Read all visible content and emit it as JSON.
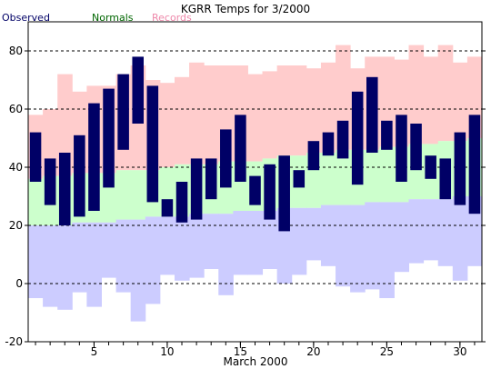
{
  "chart_data": {
    "type": "bar",
    "title": "KGRR Temps for 3/2000",
    "xlabel": "March 2000",
    "ylabel": "",
    "legend": [
      {
        "label": "Observed",
        "color": "#000066"
      },
      {
        "label": "Normals",
        "color": "#006600"
      },
      {
        "label": "Records",
        "color": "#ee88aa"
      }
    ],
    "xlim": [
      0.5,
      31.5
    ],
    "ylim": [
      -20,
      90
    ],
    "x_ticks": [
      5,
      10,
      15,
      20,
      25,
      30
    ],
    "y_ticks": [
      -20,
      0,
      20,
      40,
      60,
      80
    ],
    "dashed_gridlines_y": [
      0,
      20,
      40,
      60,
      80
    ],
    "days": [
      1,
      2,
      3,
      4,
      5,
      6,
      7,
      8,
      9,
      10,
      11,
      12,
      13,
      14,
      15,
      16,
      17,
      18,
      19,
      20,
      21,
      22,
      23,
      24,
      25,
      26,
      27,
      28,
      29,
      30,
      31
    ],
    "record_high": [
      58,
      60,
      72,
      66,
      68,
      68,
      72,
      75,
      70,
      69,
      71,
      76,
      75,
      75,
      75,
      72,
      73,
      75,
      75,
      74,
      76,
      82,
      74,
      78,
      78,
      77,
      82,
      78,
      82,
      76,
      78
    ],
    "record_low": [
      -5,
      -8,
      -9,
      -3,
      -8,
      2,
      -3,
      -13,
      -7,
      3,
      1,
      2,
      5,
      -4,
      3,
      3,
      5,
      0,
      3,
      8,
      6,
      -1,
      -3,
      -2,
      -5,
      4,
      7,
      8,
      6,
      1,
      6
    ],
    "normal_high": [
      36,
      37,
      37,
      38,
      38,
      38,
      39,
      39,
      39,
      40,
      41,
      41,
      41,
      42,
      42,
      42,
      43,
      44,
      44,
      45,
      45,
      46,
      46,
      46,
      47,
      47,
      48,
      48,
      49,
      49,
      50
    ],
    "normal_low": [
      20,
      20,
      20,
      21,
      21,
      21,
      22,
      22,
      23,
      23,
      23,
      24,
      24,
      24,
      25,
      25,
      25,
      26,
      26,
      26,
      27,
      27,
      27,
      28,
      28,
      28,
      29,
      29,
      29,
      30,
      30
    ],
    "observed_high": [
      52,
      43,
      45,
      51,
      62,
      67,
      72,
      78,
      68,
      29,
      35,
      43,
      43,
      53,
      58,
      37,
      41,
      44,
      39,
      49,
      52,
      56,
      66,
      71,
      56,
      58,
      55,
      44,
      43,
      52,
      58
    ],
    "observed_low": [
      35,
      27,
      20,
      23,
      25,
      33,
      46,
      55,
      28,
      23,
      21,
      22,
      29,
      33,
      35,
      27,
      22,
      18,
      33,
      39,
      44,
      43,
      34,
      45,
      46,
      35,
      39,
      36,
      29,
      27,
      24
    ]
  }
}
